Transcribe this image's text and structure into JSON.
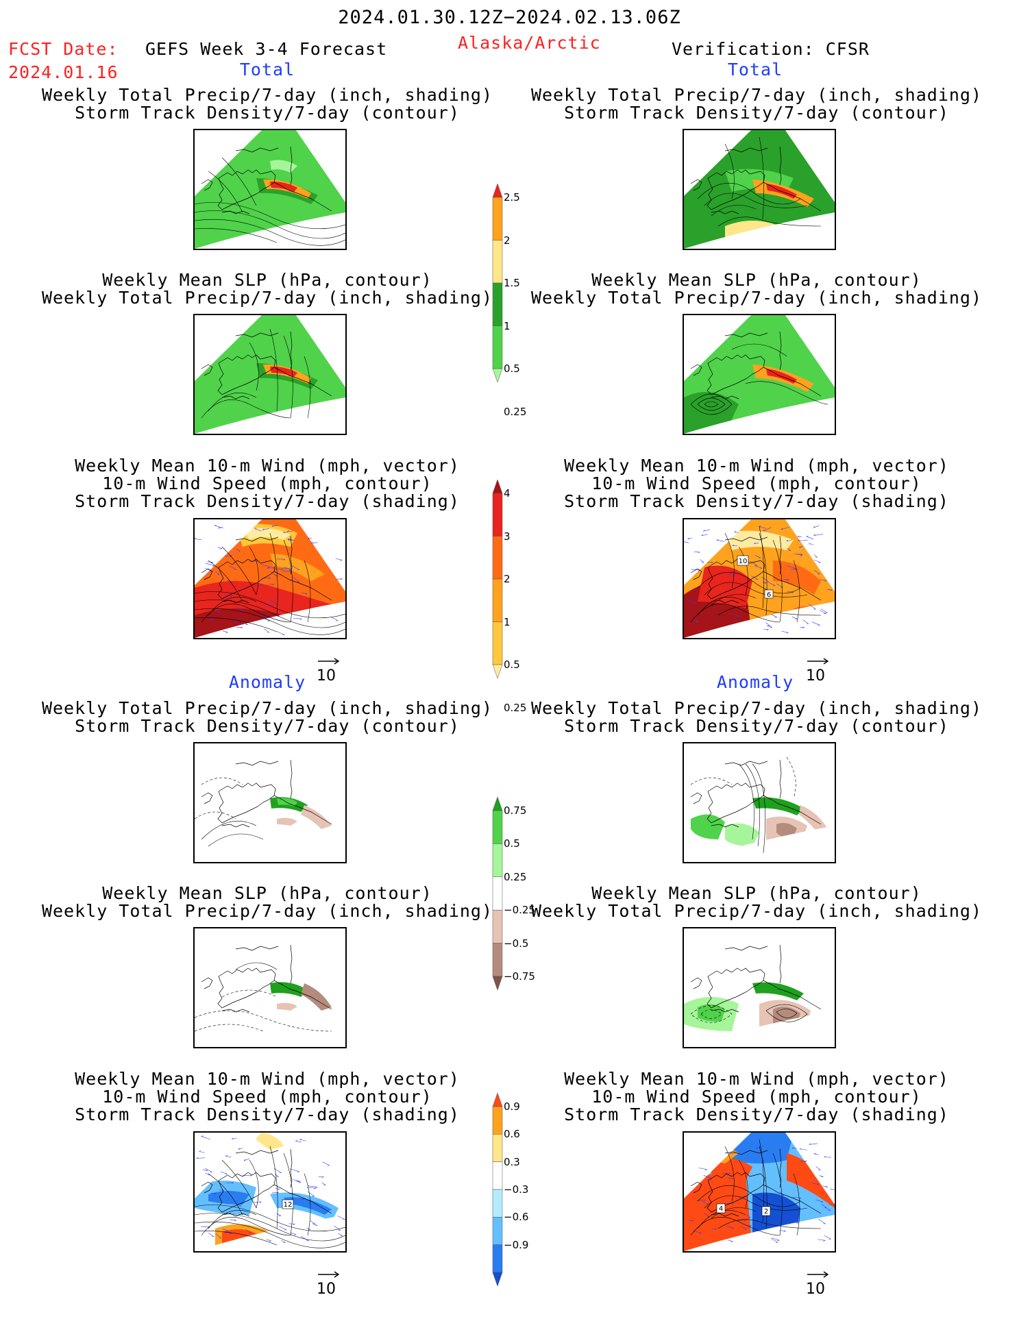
{
  "header": {
    "period": "2024.01.30.12Z−2024.02.13.06Z",
    "fcst_label": "FCST Date:",
    "fcst_date": "2024.01.16",
    "product": "GEFS Week 3-4 Forecast",
    "region": "Alaska/Arctic",
    "verification": "Verification: CFSR"
  },
  "sections": {
    "total": "Total",
    "anomaly": "Anomaly"
  },
  "titles": {
    "precip_storm": [
      "Weekly Total Precip/7-day (inch, shading)",
      "Storm Track Density/7-day (contour)"
    ],
    "slp_precip": [
      "Weekly Mean SLP (hPa, contour)",
      "Weekly Total Precip/7-day (inch, shading)"
    ],
    "wind_storm": [
      "Weekly Mean 10-m Wind (mph, vector)",
      "10-m Wind Speed (mph, contour)",
      "Storm Track Density/7-day (shading)"
    ]
  },
  "vector_ref": "10",
  "colorbars": {
    "precip_total": {
      "labels": [
        "2.5",
        "2",
        "1.5",
        "1",
        "0.5",
        "0.25"
      ],
      "colors": [
        "#e8251e",
        "#ffa21e",
        "#ffe68a",
        "#2aa12a",
        "#50d24b",
        "#a6f59a"
      ]
    },
    "storm_total": {
      "labels": [
        "4",
        "3",
        "2",
        "1",
        "0.5",
        "0.25"
      ],
      "colors": [
        "#a51418",
        "#e8251e",
        "#ff6b14",
        "#ffa21e",
        "#ffc83c",
        "#ffeba0"
      ]
    },
    "precip_anom": {
      "labels": [
        "0.75",
        "0.5",
        "0.25",
        "−0.25",
        "−0.5",
        "−0.75"
      ],
      "colors": [
        "#1fa01f",
        "#50d24b",
        "#a6f59a",
        "#ffffff",
        "#e6c3b4",
        "#b48c7d",
        "#7d5546"
      ]
    },
    "storm_anom": {
      "labels": [
        "0.9",
        "0.6",
        "0.3",
        "−0.3",
        "−0.6",
        "−0.9"
      ],
      "colors": [
        "#ff4a14",
        "#ffa21e",
        "#ffe68a",
        "#ffffff",
        "#b4ebff",
        "#64bfff",
        "#2a7df0",
        "#1450d2"
      ]
    }
  },
  "panel_labels": {
    "total_wind_right": [
      "10",
      "6"
    ],
    "anom_wind_left": [
      "12"
    ],
    "anom_wind_right": [
      "4",
      "2"
    ]
  }
}
